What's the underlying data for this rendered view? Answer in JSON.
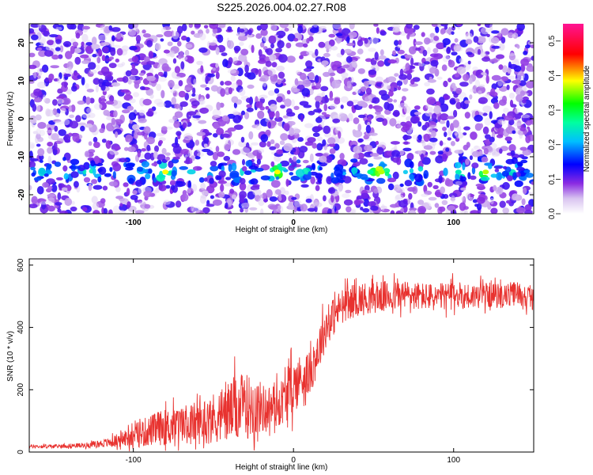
{
  "title": "S225.2026.004.02.27.R08",
  "colors": {
    "trace": "#e8322f",
    "frame": "#000000",
    "background": "#ffffff"
  },
  "chart_data": [
    {
      "type": "heatmap",
      "name": "spectrogram",
      "xlabel": "Height of straight line (km)",
      "ylabel": "Frequency (Hz)",
      "xlim": [
        -165,
        150
      ],
      "ylim": [
        -25,
        25
      ],
      "xticks": [
        "-100",
        "0",
        "100"
      ],
      "xtick_values": [
        -100,
        0,
        100
      ],
      "yticks": [
        "20",
        "10",
        "0",
        "-10",
        "-20"
      ],
      "ytick_values": [
        20,
        10,
        0,
        -10,
        -20
      ],
      "colorbar": {
        "label": "Normalized spectral amplitude",
        "range": [
          0,
          0.55
        ],
        "ticks": [
          "0.0",
          "0.1",
          "0.2",
          "0.3",
          "0.4",
          "0.5"
        ],
        "tick_values": [
          0.0,
          0.1,
          0.2,
          0.3,
          0.4,
          0.5
        ],
        "colormap": [
          "#ffffff",
          "#8a2be2",
          "#0000ff",
          "#00ffff",
          "#00ff00",
          "#ffff00",
          "#ff0000",
          "#ff1493"
        ]
      },
      "feature": "Spectral band near -14 Hz with peaks around x = -80, -10, 55, 120 km"
    },
    {
      "type": "line",
      "name": "snr",
      "xlabel": "Height of straight line (km)",
      "ylabel": "SNR (10 * v/v)",
      "xlim": [
        -165,
        150
      ],
      "ylim": [
        0,
        620
      ],
      "xticks": [
        "-100",
        "0",
        "100"
      ],
      "xtick_values": [
        -100,
        0,
        100
      ],
      "yticks": [
        "0",
        "200",
        "400",
        "600"
      ],
      "ytick_values": [
        0,
        200,
        400,
        600
      ],
      "series": [
        {
          "name": "SNR",
          "x": [
            -165,
            -150,
            -130,
            -115,
            -105,
            -95,
            -85,
            -75,
            -65,
            -55,
            -45,
            -35,
            -25,
            -18,
            -10,
            -5,
            0,
            5,
            10,
            15,
            20,
            30,
            40,
            50,
            60,
            70,
            80,
            90,
            100,
            110,
            120,
            130,
            140,
            150
          ],
          "mean": [
            18,
            18,
            22,
            30,
            45,
            60,
            75,
            85,
            90,
            100,
            120,
            140,
            150,
            140,
            150,
            175,
            210,
            240,
            250,
            320,
            400,
            470,
            490,
            495,
            500,
            505,
            500,
            495,
            505,
            500,
            505,
            500,
            510,
            490
          ],
          "spread": [
            6,
            6,
            8,
            15,
            30,
            45,
            55,
            60,
            65,
            75,
            90,
            110,
            100,
            75,
            70,
            80,
            90,
            80,
            70,
            75,
            70,
            55,
            55,
            50,
            50,
            48,
            45,
            45,
            45,
            42,
            40,
            40,
            40,
            35
          ]
        }
      ]
    }
  ]
}
